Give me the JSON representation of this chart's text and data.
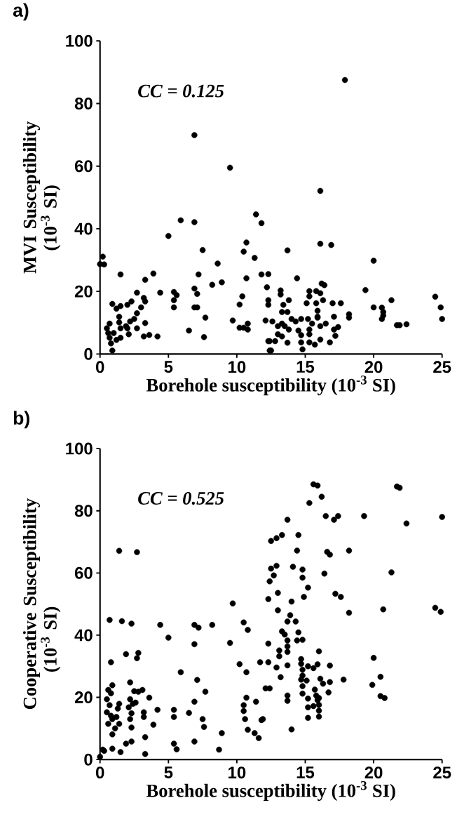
{
  "chart_data": [
    {
      "type": "scatter",
      "title": "a)",
      "xlabel": "Borehole susceptibility (10$^{-3}$ SI)",
      "ylabel": "MVI Susceptibility (10$^{-3}$ SI)",
      "annotations": [
        "CC = 0.125"
      ],
      "xlim": [
        0,
        25
      ],
      "ylim": [
        0,
        100
      ],
      "xticks": [
        0,
        5,
        10,
        15,
        20,
        25
      ],
      "yticks": [
        0,
        20,
        40,
        60,
        80,
        100
      ],
      "marker": "circle",
      "series": [
        {
          "color": "#000000",
          "x": [
            6.9,
            9.5,
            5.9,
            6.9,
            11.4,
            11.8,
            5.0,
            10.7,
            10.5,
            7.5,
            11.3,
            8.6,
            0.2,
            0.0,
            0.3,
            1.5,
            3.9,
            3.3,
            7.2,
            8.2,
            8.9,
            10.7,
            11.8,
            12.3,
            12.2,
            2.7,
            4.4,
            5.4,
            5.6,
            5.4,
            5.4,
            6.9,
            7.1,
            6.9,
            7.1,
            7.7,
            7.6,
            6.5,
            10.4,
            10.2,
            9.7,
            10.2,
            10.5,
            10.8,
            10.8,
            12.1,
            12.3,
            12.3,
            12.4,
            0.9,
            1.2,
            1.5,
            2.0,
            2.3,
            3.2,
            3.3,
            3.0,
            2.7,
            2.5,
            1.4,
            1.4,
            1.9,
            2.0,
            2.2,
            2.7,
            3.3,
            3.2,
            3.6,
            4.2,
            0.7,
            0.5,
            0.6,
            0.7,
            0.8,
            0.9,
            1.0,
            1.2,
            1.5,
            1.5,
            2.1,
            17.9,
            16.1,
            16.1,
            16.9,
            13.7,
            20.0,
            14.4,
            16.2,
            16.4,
            13.2,
            13.2,
            15.3,
            15.3,
            15.8,
            16.1,
            19.4,
            12.3,
            13.8,
            15.1,
            15.8,
            16.3,
            17.0,
            17.6,
            13.4,
            13.3,
            13.7,
            15.9,
            15.9,
            17.1,
            18.2,
            18.2,
            20.0,
            20.6,
            20.7,
            20.7,
            20.6,
            21.3,
            21.7,
            21.9,
            22.4,
            24.5,
            24.9,
            25.0,
            12.6,
            13.0,
            13.3,
            13.5,
            13.8,
            14.0,
            14.3,
            14.7,
            12.4,
            12.8,
            13.3,
            13.0,
            13.7,
            12.5,
            14.5,
            14.7,
            14.7,
            14.8,
            15.3,
            15.3,
            15.7,
            16.1,
            16.8,
            17.2,
            17.4,
            17.1,
            15.5,
            15.9,
            16.1,
            16.5,
            15.3,
            15.2
          ],
          "values": [
            69.9,
            59.5,
            42.7,
            42.1,
            44.6,
            41.8,
            37.7,
            35.6,
            32.7,
            33.2,
            30.7,
            28.9,
            31.1,
            28.7,
            28.6,
            25.4,
            25.7,
            23.7,
            25.4,
            22.1,
            22.9,
            24.2,
            25.4,
            25.5,
            21.3,
            19.6,
            19.6,
            19.8,
            18.8,
            17.2,
            14.9,
            20.9,
            19.2,
            14.9,
            14.9,
            11.6,
            5.4,
            7.5,
            18.4,
            15.8,
            10.7,
            8.4,
            8.4,
            9.7,
            7.8,
            10.7,
            17.2,
            4.1,
            1.1,
            16.0,
            14.5,
            15.3,
            15.7,
            16.8,
            17.9,
            16.8,
            14.9,
            13.0,
            11.2,
            11.9,
            10.1,
            8.9,
            8.2,
            10.4,
            8.2,
            9.9,
            5.6,
            6.1,
            5.6,
            9.7,
            8.2,
            6.7,
            5.2,
            3.4,
            1.1,
            6.7,
            4.5,
            5.2,
            8.2,
            6.3,
            87.5,
            52.1,
            35.2,
            34.8,
            33.1,
            29.8,
            24.2,
            22.5,
            22.0,
            20.3,
            19.0,
            20.1,
            18.4,
            20.1,
            19.4,
            20.4,
            15.7,
            17.2,
            16.2,
            16.2,
            17.2,
            16.2,
            16.2,
            15.7,
            13.4,
            13.4,
            13.8,
            11.9,
            11.9,
            12.7,
            11.6,
            14.9,
            14.8,
            13.4,
            12.3,
            11.2,
            17.2,
            9.2,
            9.2,
            9.5,
            18.3,
            14.9,
            11.2,
            10.4,
            8.9,
            9.7,
            8.9,
            7.8,
            11.2,
            10.4,
            11.2,
            4.1,
            4.1,
            5.6,
            6.3,
            3.6,
            1.1,
            7.5,
            6.0,
            3.7,
            1.5,
            6.3,
            3.7,
            3.0,
            4.6,
            3.7,
            5.8,
            8.6,
            7.8,
            9.7,
            11.6,
            8.9,
            9.7,
            7.8,
            11.2
          ]
        }
      ]
    },
    {
      "type": "scatter",
      "title": "b)",
      "xlabel": "Borehole susceptibility (10$^{-3}$ SI)",
      "ylabel": "Cooperative Susceptibility (10$^{-3}$ SI)",
      "annotations": [
        "CC = 0.525"
      ],
      "xlim": [
        0,
        25
      ],
      "ylim": [
        0,
        100
      ],
      "xticks": [
        0,
        5,
        10,
        15,
        20,
        25
      ],
      "yticks": [
        0,
        20,
        40,
        60,
        80,
        100
      ],
      "marker": "circle",
      "series": [
        {
          "color": "#000000",
          "x": [
            1.4,
            2.7,
            0.7,
            1.6,
            2.3,
            4.4,
            5.0,
            6.9,
            7.2,
            8.2,
            6.9,
            9.7,
            9.5,
            10.5,
            10.8,
            1.9,
            2.8,
            2.7,
            0.8,
            10.2,
            10.7,
            11.7,
            12.3,
            12.3,
            12.5,
            12.5,
            12.4,
            12.3,
            5.9,
            7.1,
            7.7,
            2.2,
            2.5,
            2.8,
            3.1,
            3.6,
            12.1,
            12.4,
            6.9,
            10.7,
            10.5,
            10.5,
            10.6,
            11.4,
            11.9,
            10.8,
            11.3,
            11.6,
            4.2,
            5.4,
            5.4,
            6.5,
            7.5,
            7.6,
            8.9,
            8.7,
            6.9,
            5.4,
            5.6,
            3.9,
            3.3,
            3.3,
            2.3,
            1.9,
            1.5,
            0.9,
            0.3,
            0.0,
            0.2,
            0.9,
            3.2,
            3.2,
            2.2,
            2.4,
            2.1,
            2.3,
            2.2,
            2.3,
            2.6,
            0.6,
            0.8,
            0.5,
            0.7,
            0.5,
            0.8,
            0.6,
            0.9,
            1.2,
            1.4,
            0.9,
            1.1,
            1.3,
            1.4,
            15.6,
            15.9,
            16.2,
            15.3,
            13.7,
            16.5,
            17.1,
            17.4,
            19.3,
            21.7,
            21.9,
            22.4,
            25.0,
            12.9,
            13.3,
            14.5,
            14.4,
            16.6,
            16.8,
            18.2,
            12.9,
            12.7,
            14.1,
            14.8,
            14.8,
            16.4,
            21.3,
            15.2,
            13.0,
            14.9,
            14.0,
            17.2,
            17.6,
            13.0,
            18.2,
            20.7,
            24.5,
            24.9,
            13.9,
            13.7,
            14.3,
            14.5,
            13.3,
            13.5,
            13.7,
            13.7,
            13.7,
            14.4,
            14.8,
            13.1,
            13.1,
            16.0,
            12.9,
            13.7,
            13.2,
            14.7,
            14.7,
            14.8,
            14.8,
            14.7,
            14.8,
            14.8,
            15.1,
            15.2,
            15.6,
            15.9,
            16.8,
            16.1,
            16.3,
            16.8,
            16.7,
            17.8,
            15.2,
            15.2,
            15.2,
            15.7,
            15.8,
            15.9,
            16.0,
            16.0,
            16.0,
            15.6,
            16.0,
            13.7,
            13.7,
            14.0,
            11.8,
            20.0,
            20.5,
            19.9,
            20.5,
            20.8
          ],
          "values": [
            67.1,
            66.7,
            44.9,
            44.5,
            43.7,
            43.3,
            39.2,
            43.3,
            42.4,
            43.3,
            37.1,
            50.2,
            37.5,
            44.1,
            41.7,
            33.9,
            34.3,
            32.6,
            31.3,
            30.7,
            28.1,
            31.3,
            31.3,
            37.3,
            70.3,
            61.4,
            57.3,
            51.6,
            28.1,
            25.6,
            21.8,
            24.8,
            22.0,
            21.8,
            22.4,
            19.9,
            22.9,
            22.9,
            18.6,
            19.9,
            17.5,
            15.6,
            13.0,
            18.6,
            13.0,
            9.6,
            8.5,
            6.9,
            16.0,
            16.0,
            13.7,
            15.0,
            13.0,
            10.5,
            8.5,
            3.2,
            5.8,
            5.1,
            3.3,
            11.2,
            7.2,
            1.8,
            5.8,
            5.1,
            2.4,
            3.5,
            2.8,
            0.9,
            3.2,
            8.1,
            15.2,
            13.7,
            19.4,
            17.9,
            16.8,
            14.9,
            13.0,
            10.3,
            18.3,
            22.4,
            21.3,
            19.4,
            17.5,
            15.2,
            14.1,
            11.5,
            13.0,
            13.7,
            17.9,
            23.9,
            10.0,
            16.4,
            11.5,
            88.5,
            88.1,
            84.5,
            82.5,
            77.1,
            78.3,
            77.1,
            78.3,
            78.3,
            87.8,
            87.4,
            75.9,
            78.0,
            71.2,
            72.2,
            72.2,
            67.2,
            66.8,
            65.9,
            67.2,
            62.3,
            59.2,
            62.0,
            61.1,
            58.5,
            59.8,
            60.2,
            55.3,
            53.6,
            52.3,
            50.8,
            53.3,
            52.3,
            48.0,
            47.2,
            48.3,
            48.8,
            47.5,
            46.4,
            44.4,
            44.4,
            40.9,
            41.2,
            40.2,
            38.3,
            36.4,
            34.6,
            38.3,
            38.5,
            35.1,
            33.2,
            34.8,
            29.6,
            30.3,
            26.5,
            32.3,
            30.8,
            28.9,
            27.0,
            25.7,
            23.6,
            21.2,
            25.4,
            30.0,
            29.4,
            30.6,
            30.2,
            26.0,
            24.4,
            24.9,
            21.6,
            25.7,
            19.6,
            16.8,
            13.4,
            22.5,
            20.6,
            19.1,
            17.6,
            15.7,
            13.8,
            17.2,
            19.8,
            20.6,
            18.9,
            9.7,
            12.7,
            32.7,
            26.6,
            24.0,
            20.4,
            19.8
          ]
        }
      ]
    }
  ]
}
